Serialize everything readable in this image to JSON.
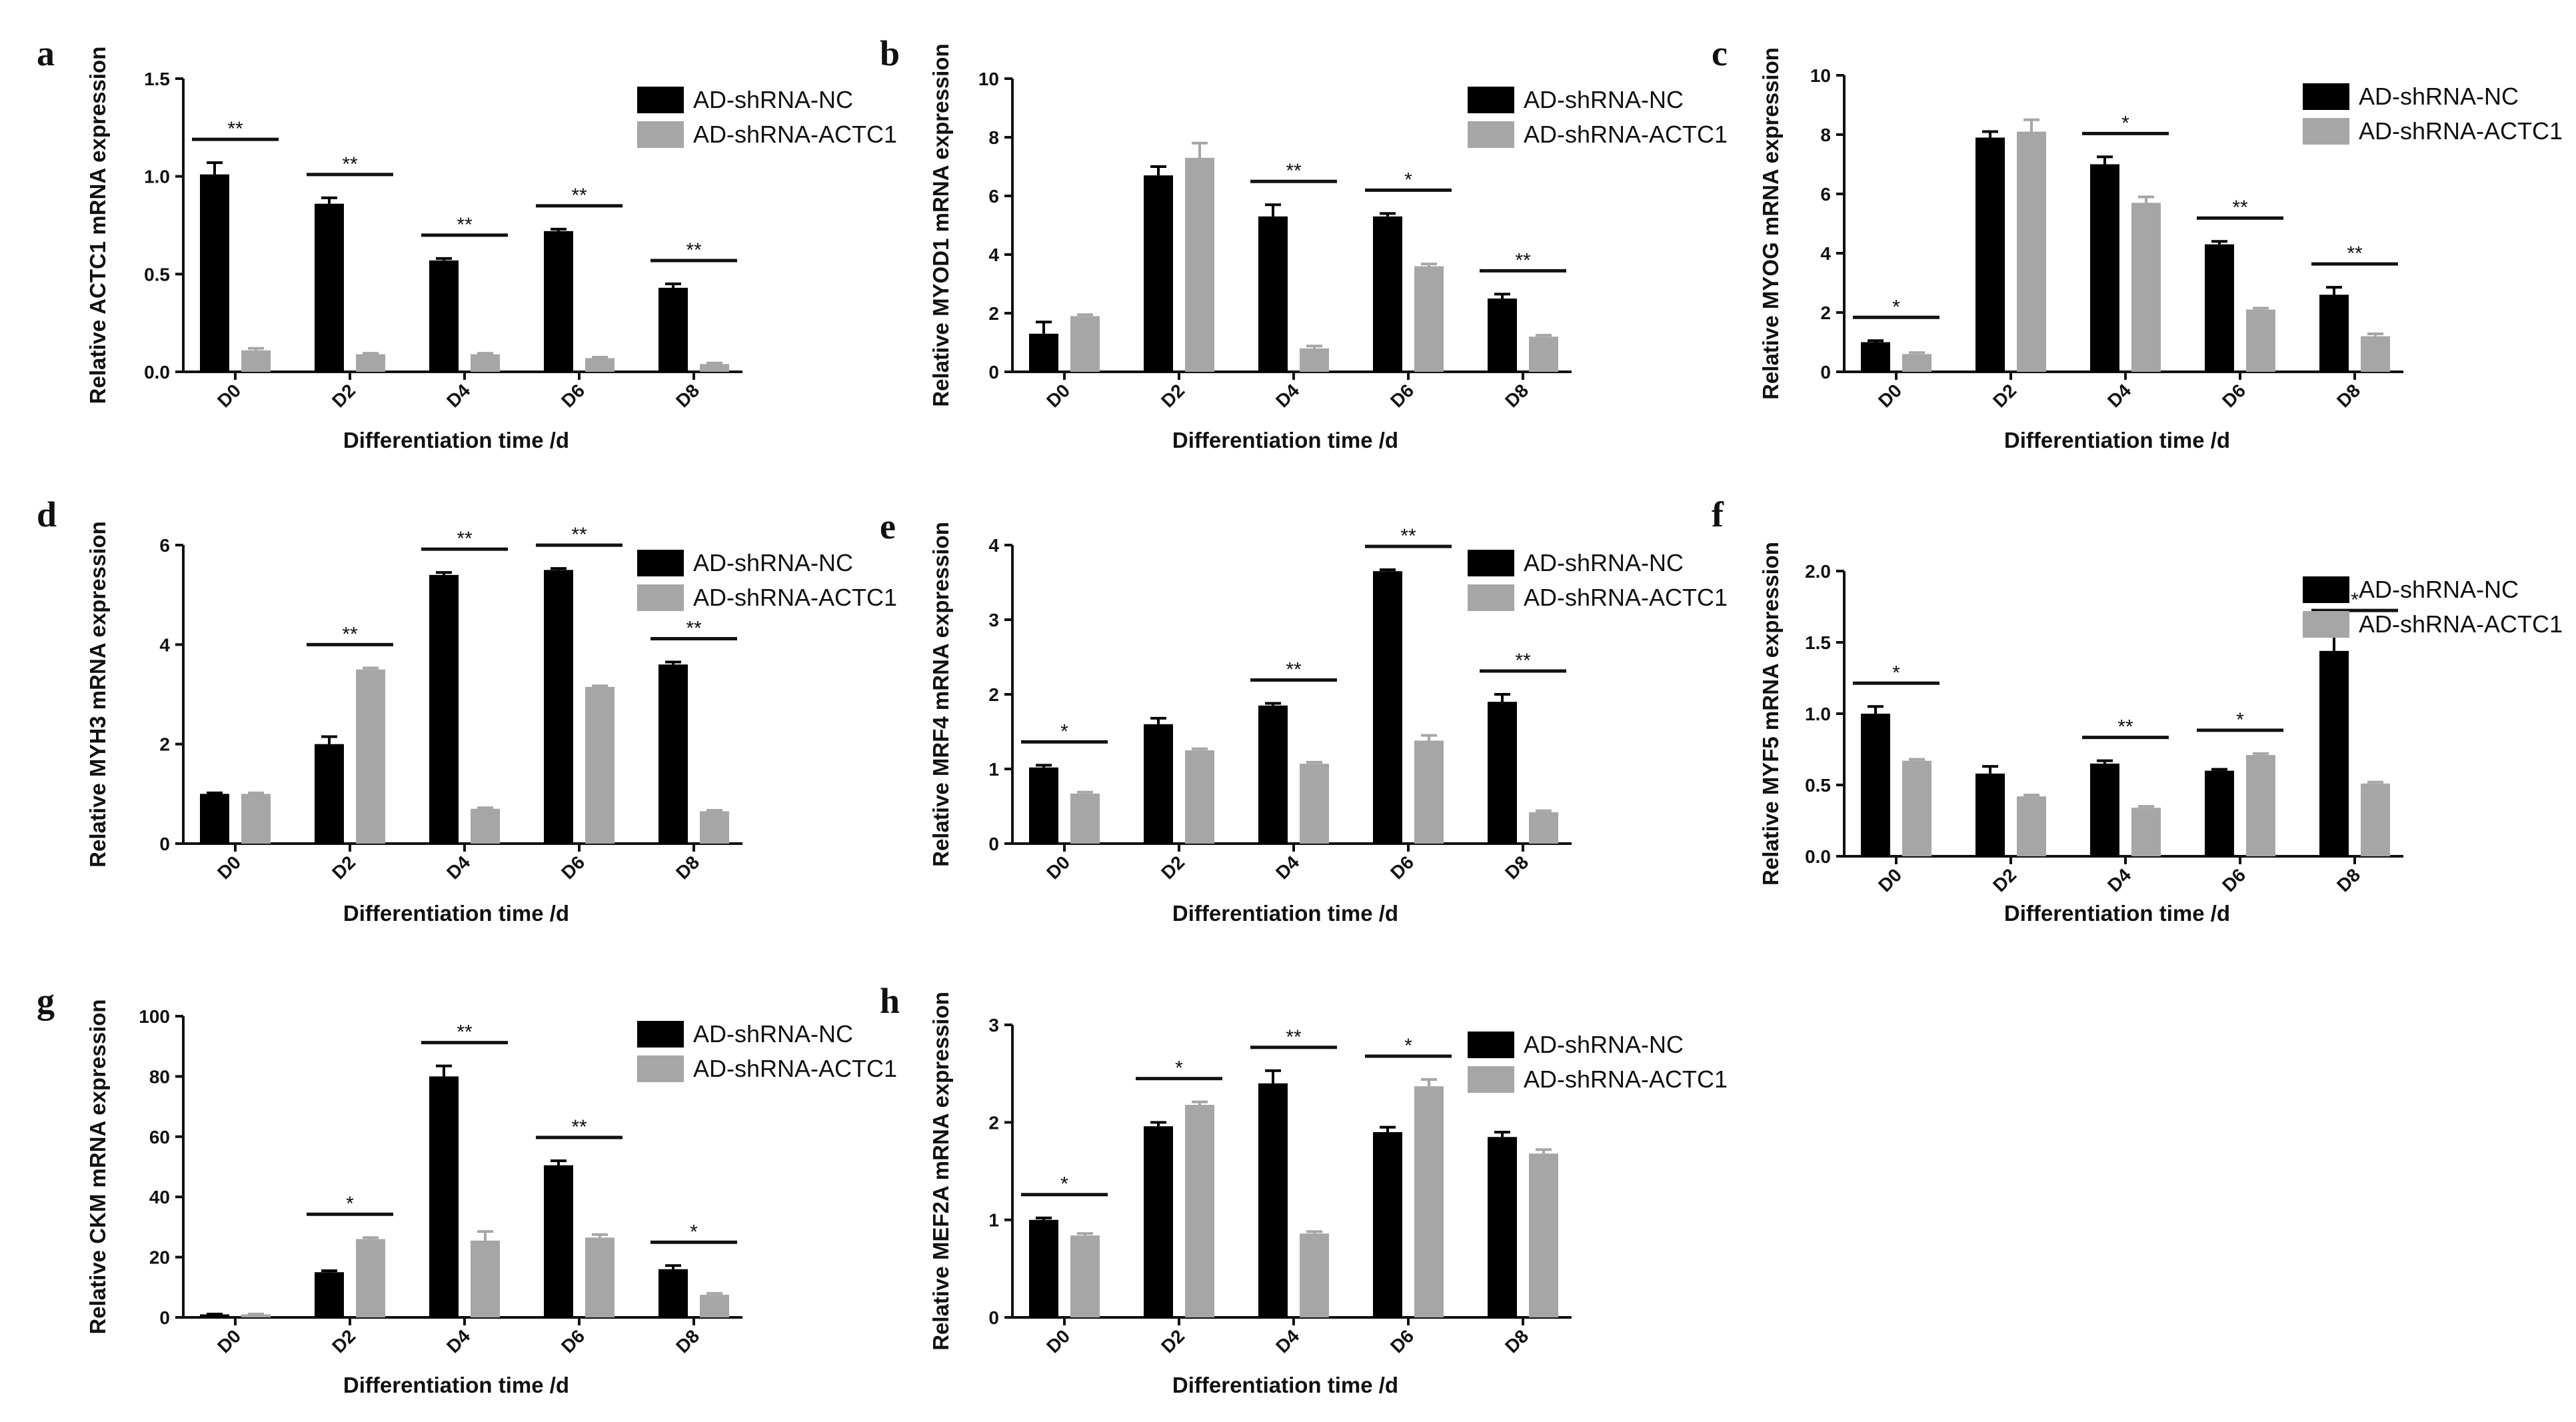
{
  "figure": {
    "legend_labels": [
      "AD-shRNA-NC",
      "AD-shRNA-ACTC1"
    ],
    "colors": {
      "nc": "#000000",
      "actc1": "#a6a6a6",
      "axis": "#111111"
    }
  },
  "chart_data": [
    {
      "type": "bar",
      "panel": "a",
      "categories": [
        "D0",
        "D2",
        "D4",
        "D6",
        "D8"
      ],
      "series": [
        {
          "name": "AD-shRNA-NC",
          "values": [
            1.01,
            0.86,
            0.57,
            0.72,
            0.43
          ],
          "errors": [
            0.06,
            0.03,
            0.01,
            0.01,
            0.02
          ]
        },
        {
          "name": "AD-shRNA-ACTC1",
          "values": [
            0.11,
            0.09,
            0.09,
            0.07,
            0.04
          ],
          "errors": [
            0.01,
            0.005,
            0.005,
            0.005,
            0.005
          ]
        }
      ],
      "significance": [
        "**",
        "**",
        "**",
        "**",
        "**"
      ],
      "ylim": [
        0,
        1.5
      ],
      "yticks": [
        "0.0",
        "0.5",
        "1.0",
        "1.5"
      ],
      "ylabel": "Relative ACTC1 mRNA expression",
      "xlabel": "Differentiation time /d",
      "legend": [
        "AD-shRNA-NC",
        "AD-shRNA-ACTC1"
      ]
    },
    {
      "type": "bar",
      "panel": "b",
      "categories": [
        "D0",
        "D2",
        "D4",
        "D6",
        "D8"
      ],
      "series": [
        {
          "name": "AD-shRNA-NC",
          "values": [
            1.3,
            6.7,
            5.3,
            5.3,
            2.5
          ],
          "errors": [
            0.4,
            0.3,
            0.4,
            0.1,
            0.15
          ]
        },
        {
          "name": "AD-shRNA-ACTC1",
          "values": [
            1.9,
            7.3,
            0.8,
            3.6,
            1.2
          ],
          "errors": [
            0.05,
            0.5,
            0.08,
            0.08,
            0.05
          ]
        }
      ],
      "significance": [
        "",
        "",
        "**",
        "*",
        "**"
      ],
      "ylim": [
        0,
        10
      ],
      "yticks": [
        "0",
        "2",
        "4",
        "6",
        "8",
        "10"
      ],
      "ylabel": "Relative MYOD1 mRNA expression",
      "xlabel": "Differentiation time /d",
      "legend": [
        "AD-shRNA-NC",
        "AD-shRNA-ACTC1"
      ]
    },
    {
      "type": "bar",
      "panel": "c",
      "categories": [
        "D0",
        "D2",
        "D4",
        "D6",
        "D8"
      ],
      "series": [
        {
          "name": "AD-shRNA-NC",
          "values": [
            1.0,
            7.9,
            7.0,
            4.3,
            2.6
          ],
          "errors": [
            0.05,
            0.2,
            0.25,
            0.1,
            0.25
          ]
        },
        {
          "name": "AD-shRNA-ACTC1",
          "values": [
            0.6,
            8.1,
            5.7,
            2.1,
            1.2
          ],
          "errors": [
            0.05,
            0.4,
            0.2,
            0.05,
            0.08
          ]
        }
      ],
      "significance": [
        "*",
        "",
        "*",
        "**",
        "**"
      ],
      "ylim": [
        0,
        10
      ],
      "yticks": [
        "0",
        "2",
        "4",
        "6",
        "8",
        "10"
      ],
      "ylabel": "Relative MYOG mRNA expression",
      "xlabel": "Differentiation time /d",
      "legend": [
        "AD-shRNA-NC",
        "AD-shRNA-ACTC1"
      ]
    },
    {
      "type": "bar",
      "panel": "d",
      "categories": [
        "D0",
        "D2",
        "D4",
        "D6",
        "D8"
      ],
      "series": [
        {
          "name": "AD-shRNA-NC",
          "values": [
            1.0,
            2.0,
            5.4,
            5.5,
            3.6
          ],
          "errors": [
            0.02,
            0.15,
            0.05,
            0.03,
            0.05
          ]
        },
        {
          "name": "AD-shRNA-ACTC1",
          "values": [
            1.0,
            3.5,
            0.7,
            3.15,
            0.65
          ],
          "errors": [
            0.02,
            0.03,
            0.02,
            0.02,
            0.02
          ]
        }
      ],
      "significance": [
        "",
        "**",
        "**",
        "**",
        "**"
      ],
      "ylim": [
        0,
        6
      ],
      "yticks": [
        "0",
        "2",
        "4",
        "6"
      ],
      "ylabel": "Relative MYH3 mRNA expression",
      "xlabel": "Differentiation time /d",
      "legend": [
        "AD-shRNA-NC",
        "AD-shRNA-ACTC1"
      ]
    },
    {
      "type": "bar",
      "panel": "e",
      "categories": [
        "D0",
        "D2",
        "D4",
        "D6",
        "D8"
      ],
      "series": [
        {
          "name": "AD-shRNA-NC",
          "values": [
            1.02,
            1.6,
            1.85,
            3.65,
            1.9
          ],
          "errors": [
            0.03,
            0.08,
            0.03,
            0.02,
            0.1
          ]
        },
        {
          "name": "AD-shRNA-ACTC1",
          "values": [
            0.67,
            1.25,
            1.07,
            1.38,
            0.42
          ],
          "errors": [
            0.02,
            0.02,
            0.02,
            0.07,
            0.02
          ]
        }
      ],
      "significance": [
        "*",
        "",
        "**",
        "**",
        "**"
      ],
      "ylim": [
        0,
        4
      ],
      "yticks": [
        "0",
        "1",
        "2",
        "3",
        "4"
      ],
      "ylabel": "Relative MRF4 mRNA expression",
      "xlabel": "Differentiation time /d",
      "legend": [
        "AD-shRNA-NC",
        "AD-shRNA-ACTC1"
      ]
    },
    {
      "type": "bar",
      "panel": "f",
      "categories": [
        "D0",
        "D2",
        "D4",
        "D6",
        "D8"
      ],
      "series": [
        {
          "name": "AD-shRNA-NC",
          "values": [
            1.0,
            0.58,
            0.65,
            0.6,
            1.44
          ],
          "errors": [
            0.05,
            0.05,
            0.02,
            0.01,
            0.12
          ]
        },
        {
          "name": "AD-shRNA-ACTC1",
          "values": [
            0.67,
            0.42,
            0.34,
            0.71,
            0.51
          ],
          "errors": [
            0.01,
            0.01,
            0.01,
            0.01,
            0.01
          ]
        }
      ],
      "significance": [
        "*",
        "",
        "**",
        "*",
        "*"
      ],
      "ylim": [
        0,
        2.0
      ],
      "yticks": [
        "0.0",
        "0.5",
        "1.0",
        "1.5",
        "2.0"
      ],
      "ylabel": "Relative MYF5 mRNA expression",
      "xlabel": "Differentiation time /d",
      "legend": [
        "AD-shRNA-NC",
        "AD-shRNA-ACTC1"
      ]
    },
    {
      "type": "bar",
      "panel": "g",
      "categories": [
        "D0",
        "D2",
        "D4",
        "D6",
        "D8"
      ],
      "series": [
        {
          "name": "AD-shRNA-NC",
          "values": [
            1.0,
            15,
            80,
            50.5,
            16
          ],
          "errors": [
            0.1,
            0.5,
            3.5,
            1.5,
            1.2
          ]
        },
        {
          "name": "AD-shRNA-ACTC1",
          "values": [
            1.0,
            26,
            25.5,
            26.5,
            7.5
          ],
          "errors": [
            0.1,
            0.5,
            3.0,
            1.0,
            0.5
          ]
        }
      ],
      "significance": [
        "",
        "*",
        "**",
        "**",
        "*"
      ],
      "ylim": [
        0,
        100
      ],
      "yticks": [
        "0",
        "20",
        "40",
        "60",
        "80",
        "100"
      ],
      "ylabel": "Relative CKM mRNA expression",
      "xlabel": "Differentiation time /d",
      "legend": [
        "AD-shRNA-NC",
        "AD-shRNA-ACTC1"
      ]
    },
    {
      "type": "bar",
      "panel": "h",
      "categories": [
        "D0",
        "D2",
        "D4",
        "D6",
        "D8"
      ],
      "series": [
        {
          "name": "AD-shRNA-NC",
          "values": [
            1.0,
            1.96,
            2.4,
            1.9,
            1.85
          ],
          "errors": [
            0.02,
            0.04,
            0.13,
            0.05,
            0.05
          ]
        },
        {
          "name": "AD-shRNA-ACTC1",
          "values": [
            0.84,
            2.18,
            0.86,
            2.37,
            1.68
          ],
          "errors": [
            0.02,
            0.03,
            0.02,
            0.07,
            0.04
          ]
        }
      ],
      "significance": [
        "*",
        "*",
        "**",
        "*",
        ""
      ],
      "ylim": [
        0,
        3
      ],
      "yticks": [
        "0",
        "1",
        "2",
        "3"
      ],
      "ylabel": "Relative MEF2A mRNA expression",
      "xlabel": "Differentiation time /d",
      "legend": [
        "AD-shRNA-NC",
        "AD-shRNA-ACTC1"
      ]
    }
  ]
}
